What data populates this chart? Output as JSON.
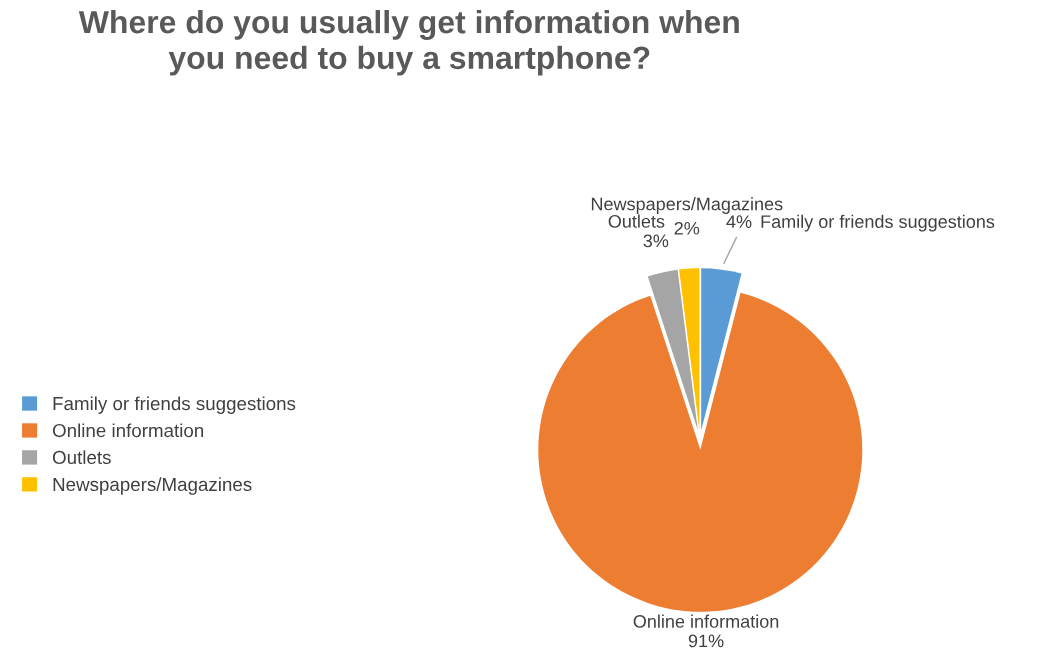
{
  "chart_data": {
    "type": "pie",
    "title": "Where do you usually get information when\nyou need to buy a smartphone?",
    "categories": [
      "Family or friends suggestions",
      "Online information",
      "Outlets",
      "Newspapers/Magazines"
    ],
    "values": [
      4,
      91,
      3,
      2
    ],
    "colors": [
      "#5b9bd5",
      "#ed7d31",
      "#a5a5a5",
      "#ffc000"
    ],
    "value_labels": [
      "4%",
      "91%",
      "3%",
      "2%"
    ],
    "legend": "left"
  }
}
